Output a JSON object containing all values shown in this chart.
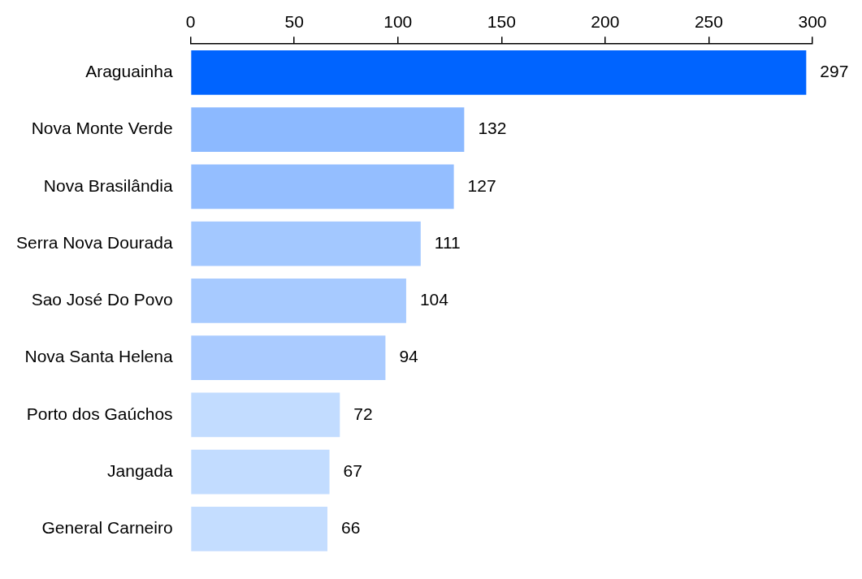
{
  "chart_data": {
    "type": "bar",
    "orientation": "horizontal",
    "categories": [
      "Araguainha",
      "Nova Monte Verde",
      "Nova Brasilândia",
      "Serra Nova Dourada",
      "Sao José Do Povo",
      "Nova Santa Helena",
      "Porto dos Gaúchos",
      "Jangada",
      "General Carneiro"
    ],
    "values": [
      297,
      132,
      127,
      111,
      104,
      94,
      72,
      67,
      66
    ],
    "colors": [
      "#0064ff",
      "#8cb9ff",
      "#94beff",
      "#a3c8ff",
      "#a7caff",
      "#aacbff",
      "#c2dcff",
      "#c2dcff",
      "#c4ddff"
    ],
    "xlim": [
      0,
      300
    ],
    "xticks": [
      0,
      50,
      100,
      150,
      200,
      250,
      300
    ],
    "data_labels": true,
    "grid": false,
    "legend": false
  }
}
